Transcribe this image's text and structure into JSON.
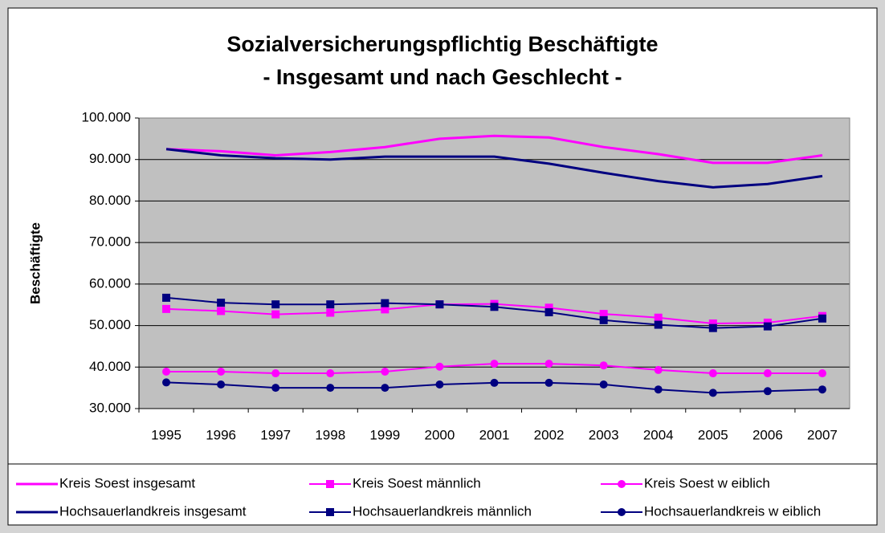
{
  "chart_data": {
    "type": "line",
    "title": "Sozialversicherungspflichtig Beschäftigte",
    "subtitle": "- Insgesamt und nach Geschlecht -",
    "y_label": "Beschäftigte",
    "categories": [
      "1995",
      "1996",
      "1997",
      "1998",
      "1999",
      "2000",
      "2001",
      "2002",
      "2003",
      "2004",
      "2005",
      "2006",
      "2007"
    ],
    "ylim": [
      30000,
      100000
    ],
    "yticks": [
      {
        "value": 30000,
        "label": "30.000"
      },
      {
        "value": 40000,
        "label": "40.000"
      },
      {
        "value": 50000,
        "label": "50.000"
      },
      {
        "value": 60000,
        "label": "60.000"
      },
      {
        "value": 70000,
        "label": "70.000"
      },
      {
        "value": 80000,
        "label": "80.000"
      },
      {
        "value": 90000,
        "label": "90.000"
      },
      {
        "value": 100000,
        "label": "100.000"
      }
    ],
    "grid": true,
    "legend": "bottom",
    "series": [
      {
        "name": "Kreis Soest insgesamt",
        "color": "#ff00ff",
        "marker": "none",
        "values": [
          92500,
          92000,
          91000,
          91800,
          93000,
          95000,
          95700,
          95300,
          93000,
          91300,
          89200,
          89200,
          91000
        ]
      },
      {
        "name": "Kreis Soest männlich",
        "color": "#ff00ff",
        "marker": "square",
        "values": [
          54000,
          53500,
          52700,
          53100,
          53900,
          55100,
          55200,
          54300,
          52800,
          51900,
          50500,
          50700,
          52300
        ]
      },
      {
        "name": "Kreis Soest w eiblich",
        "color": "#ff00ff",
        "marker": "circle",
        "values": [
          38900,
          38900,
          38500,
          38500,
          38900,
          40100,
          40800,
          40800,
          40400,
          39300,
          38500,
          38500,
          38500
        ]
      },
      {
        "name": "Hochsauerlandkreis insgesamt",
        "color": "#000080",
        "marker": "none",
        "values": [
          92500,
          91000,
          90300,
          90000,
          90700,
          90700,
          90700,
          89000,
          86800,
          84800,
          83300,
          84100,
          86000
        ]
      },
      {
        "name": "Hochsauerlandkreis männlich",
        "color": "#000080",
        "marker": "square",
        "values": [
          56700,
          55500,
          55100,
          55100,
          55400,
          55100,
          54500,
          53200,
          51300,
          50200,
          49400,
          49800,
          51700
        ]
      },
      {
        "name": "Hochsauerlandkreis w eiblich",
        "color": "#000080",
        "marker": "circle",
        "values": [
          36300,
          35800,
          35000,
          35000,
          35000,
          35800,
          36200,
          36200,
          35800,
          34600,
          33800,
          34200,
          34600
        ]
      }
    ]
  }
}
